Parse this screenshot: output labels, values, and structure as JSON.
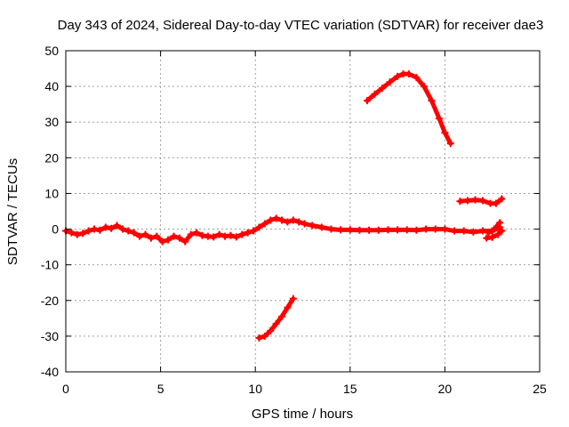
{
  "chart_data": {
    "type": "scatter",
    "title": "Day 343 of 2024, Sidereal Day-to-day VTEC variation (SDTVAR) for receiver dae3",
    "xlabel": "GPS time / hours",
    "ylabel": "SDTVAR / TECUs",
    "xlim": [
      0,
      25
    ],
    "ylim": [
      -40,
      50
    ],
    "xticks": [
      0,
      5,
      10,
      15,
      20,
      25
    ],
    "yticks": [
      -40,
      -30,
      -20,
      -10,
      0,
      10,
      20,
      30,
      40,
      50
    ],
    "grid": true,
    "color": "#ff0000",
    "series": [
      {
        "name": "main-trace",
        "x": [
          0.0,
          0.3,
          0.6,
          0.9,
          1.2,
          1.5,
          1.8,
          2.1,
          2.4,
          2.7,
          3.0,
          3.3,
          3.6,
          3.9,
          4.2,
          4.5,
          4.8,
          5.1,
          5.4,
          5.7,
          6.0,
          6.3,
          6.6,
          6.9,
          7.2,
          7.5,
          7.8,
          8.1,
          8.4,
          8.7,
          9.0,
          9.3,
          9.6,
          9.9,
          10.2,
          10.5,
          10.8,
          11.1,
          11.4,
          11.7,
          12.0,
          12.3,
          12.6,
          13.0,
          13.5,
          14.0,
          14.5,
          15.0,
          15.5,
          16.0,
          16.5,
          17.0,
          17.5,
          18.0,
          18.5,
          19.0,
          19.5,
          20.0,
          20.5,
          21.0,
          21.5,
          22.0,
          22.5,
          22.9
        ],
        "y": [
          -0.5,
          -1.0,
          -1.5,
          -1.2,
          -0.5,
          0.0,
          -0.3,
          0.5,
          0.2,
          1.0,
          0.0,
          -0.5,
          -1.0,
          -2.0,
          -1.5,
          -2.5,
          -2.0,
          -3.5,
          -3.0,
          -2.0,
          -2.5,
          -3.5,
          -1.5,
          -1.0,
          -1.8,
          -2.0,
          -2.2,
          -1.5,
          -2.0,
          -1.8,
          -2.2,
          -1.5,
          -1.0,
          -0.5,
          0.5,
          1.5,
          2.5,
          3.0,
          2.5,
          2.0,
          2.5,
          2.0,
          1.5,
          1.0,
          0.5,
          0.0,
          -0.2,
          -0.2,
          -0.3,
          -0.3,
          -0.3,
          -0.2,
          -0.2,
          -0.2,
          -0.3,
          0.0,
          0.0,
          0.0,
          -0.5,
          -0.5,
          -0.8,
          -0.5,
          -0.5,
          0.5
        ]
      },
      {
        "name": "high-arc",
        "x": [
          15.9,
          16.3,
          16.7,
          17.1,
          17.5,
          17.8,
          18.1,
          18.5,
          18.9,
          19.3,
          19.7,
          20.0,
          20.3
        ],
        "y": [
          36.0,
          37.8,
          39.5,
          41.2,
          42.8,
          43.5,
          43.5,
          42.5,
          40.0,
          36.0,
          31.0,
          27.0,
          24.0
        ]
      },
      {
        "name": "low-arc",
        "x": [
          10.2,
          10.5,
          10.8,
          11.1,
          11.4,
          11.7,
          12.0
        ],
        "y": [
          -30.5,
          -30.0,
          -28.5,
          -26.5,
          -24.5,
          -22.0,
          -19.5
        ]
      },
      {
        "name": "right-upper",
        "x": [
          20.8,
          21.2,
          21.6,
          22.0,
          22.4,
          22.7,
          23.0
        ],
        "y": [
          7.8,
          8.0,
          8.2,
          8.0,
          7.2,
          7.2,
          8.5
        ]
      },
      {
        "name": "right-lower",
        "x": [
          22.2,
          22.5,
          22.8,
          23.0
        ],
        "y": [
          -2.5,
          -2.3,
          -1.5,
          -0.5
        ]
      },
      {
        "name": "right-rise",
        "x": [
          22.3,
          22.6,
          22.9
        ],
        "y": [
          -1.0,
          0.0,
          1.8
        ]
      }
    ]
  }
}
